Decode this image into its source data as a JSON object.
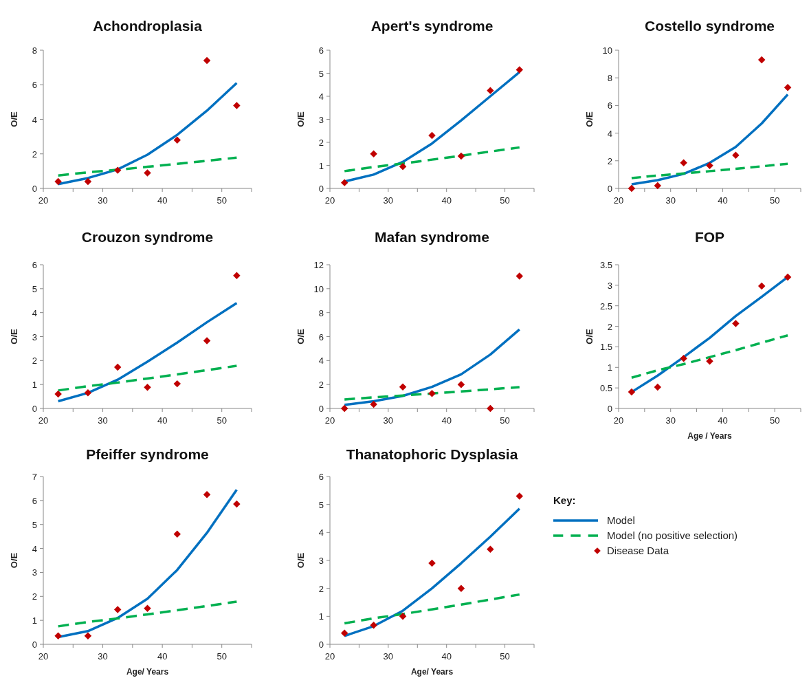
{
  "chart_data": [
    {
      "type": "line",
      "title": "Achondroplasia",
      "ylabel": "O/E",
      "xlim": [
        20,
        55
      ],
      "xticks": [
        20,
        {
          "value": 25,
          "label": null
        },
        30,
        {
          "value": 35,
          "label": null
        },
        40,
        {
          "value": 45,
          "label": null
        },
        50,
        {
          "value": 55,
          "label": null
        }
      ],
      "ylim": [
        0,
        8
      ],
      "yticks": [
        0,
        2,
        4,
        6,
        8
      ],
      "x": [
        22.5,
        27.5,
        32.5,
        37.5,
        42.5,
        47.5,
        52.5
      ],
      "series": [
        {
          "type": "line",
          "color": "#0070c0",
          "line_style": "solid",
          "values": [
            0.25,
            0.6,
            1.1,
            1.95,
            3.1,
            4.5,
            6.1
          ]
        },
        {
          "type": "line",
          "color": "#00b050",
          "line_style": "dashed",
          "values": [
            0.75,
            0.93,
            1.08,
            1.25,
            1.42,
            1.6,
            1.78
          ]
        },
        {
          "type": "scatter",
          "color": "#c00000",
          "marker": "diamond",
          "values": [
            0.4,
            0.4,
            1.05,
            0.9,
            2.8,
            7.4,
            4.8
          ]
        }
      ]
    },
    {
      "type": "line",
      "title": "Apert's syndrome",
      "ylabel": "O/E",
      "xlim": [
        20,
        55
      ],
      "xticks": [
        20,
        {
          "value": 25,
          "label": null
        },
        30,
        {
          "value": 35,
          "label": null
        },
        40,
        {
          "value": 45,
          "label": null
        },
        50,
        {
          "value": 55,
          "label": null
        }
      ],
      "ylim": [
        0,
        6
      ],
      "yticks": [
        0,
        1,
        2,
        3,
        4,
        5,
        6
      ],
      "x": [
        22.5,
        27.5,
        32.5,
        37.5,
        42.5,
        47.5,
        52.5
      ],
      "series": [
        {
          "type": "line",
          "color": "#0070c0",
          "line_style": "solid",
          "values": [
            0.3,
            0.6,
            1.15,
            1.95,
            2.95,
            4.0,
            5.05
          ]
        },
        {
          "type": "line",
          "color": "#00b050",
          "line_style": "dashed",
          "values": [
            0.75,
            0.93,
            1.08,
            1.25,
            1.42,
            1.6,
            1.78
          ]
        },
        {
          "type": "scatter",
          "color": "#c00000",
          "marker": "diamond",
          "values": [
            0.25,
            1.5,
            0.95,
            2.3,
            1.4,
            4.25,
            5.15
          ]
        }
      ]
    },
    {
      "type": "line",
      "title": "Costello syndrome",
      "ylabel": "O/E",
      "xlim": [
        20,
        55
      ],
      "xticks": [
        20,
        {
          "value": 25,
          "label": null
        },
        30,
        {
          "value": 35,
          "label": null
        },
        40,
        {
          "value": 45,
          "label": null
        },
        50,
        {
          "value": 55,
          "label": null
        }
      ],
      "ylim": [
        0,
        10
      ],
      "yticks": [
        0,
        2,
        4,
        6,
        8,
        10
      ],
      "x": [
        22.5,
        27.5,
        32.5,
        37.5,
        42.5,
        47.5,
        52.5
      ],
      "series": [
        {
          "type": "line",
          "color": "#0070c0",
          "line_style": "solid",
          "values": [
            0.3,
            0.6,
            1.05,
            1.85,
            3.0,
            4.7,
            6.8
          ]
        },
        {
          "type": "line",
          "color": "#00b050",
          "line_style": "dashed",
          "values": [
            0.75,
            0.93,
            1.08,
            1.25,
            1.42,
            1.6,
            1.78
          ]
        },
        {
          "type": "scatter",
          "color": "#c00000",
          "marker": "diamond",
          "values": [
            0,
            0.2,
            1.85,
            1.65,
            2.4,
            9.3,
            7.3
          ]
        }
      ]
    },
    {
      "type": "line",
      "title": "Crouzon syndrome",
      "ylabel": "O/E",
      "xlim": [
        20,
        55
      ],
      "xticks": [
        20,
        {
          "value": 25,
          "label": null
        },
        30,
        {
          "value": 35,
          "label": null
        },
        40,
        {
          "value": 45,
          "label": null
        },
        50,
        {
          "value": 55,
          "label": null
        }
      ],
      "ylim": [
        0,
        6
      ],
      "yticks": [
        0,
        1,
        2,
        3,
        4,
        5,
        6
      ],
      "x": [
        22.5,
        27.5,
        32.5,
        37.5,
        42.5,
        47.5,
        52.5
      ],
      "series": [
        {
          "type": "line",
          "color": "#0070c0",
          "line_style": "solid",
          "values": [
            0.3,
            0.65,
            1.2,
            1.95,
            2.75,
            3.6,
            4.4
          ]
        },
        {
          "type": "line",
          "color": "#00b050",
          "line_style": "dashed",
          "values": [
            0.75,
            0.93,
            1.08,
            1.25,
            1.42,
            1.6,
            1.78
          ]
        },
        {
          "type": "scatter",
          "color": "#c00000",
          "marker": "diamond",
          "values": [
            0.6,
            0.65,
            1.72,
            0.88,
            1.03,
            2.83,
            5.55
          ]
        }
      ]
    },
    {
      "type": "line",
      "title": "Mafan syndrome",
      "ylabel": "O/E",
      "xlim": [
        20,
        55
      ],
      "xticks": [
        20,
        {
          "value": 25,
          "label": null
        },
        30,
        {
          "value": 35,
          "label": null
        },
        40,
        {
          "value": 45,
          "label": null
        },
        50,
        {
          "value": 55,
          "label": null
        }
      ],
      "ylim": [
        0,
        12
      ],
      "yticks": [
        0,
        2,
        4,
        6,
        8,
        10,
        12
      ],
      "x": [
        22.5,
        27.5,
        32.5,
        37.5,
        42.5,
        47.5,
        52.5
      ],
      "series": [
        {
          "type": "line",
          "color": "#0070c0",
          "line_style": "solid",
          "values": [
            0.3,
            0.6,
            1.05,
            1.8,
            2.85,
            4.5,
            6.6
          ]
        },
        {
          "type": "line",
          "color": "#00b050",
          "line_style": "dashed",
          "values": [
            0.75,
            0.93,
            1.08,
            1.25,
            1.42,
            1.6,
            1.78
          ]
        },
        {
          "type": "scatter",
          "color": "#c00000",
          "marker": "diamond",
          "values": [
            0,
            0.35,
            1.8,
            1.25,
            2.0,
            0,
            11.05
          ]
        }
      ]
    },
    {
      "type": "line",
      "title": "FOP",
      "ylabel": "O/E",
      "xlabel": "Age / Years",
      "xlim": [
        20,
        55
      ],
      "xticks": [
        20,
        {
          "value": 25,
          "label": null
        },
        30,
        {
          "value": 35,
          "label": null
        },
        40,
        {
          "value": 45,
          "label": null
        },
        50,
        {
          "value": 55,
          "label": null
        }
      ],
      "ylim": [
        0,
        3.5
      ],
      "yticks": [
        0,
        0.5,
        1,
        1.5,
        2,
        2.5,
        3,
        3.5
      ],
      "x": [
        22.5,
        27.5,
        32.5,
        37.5,
        42.5,
        47.5,
        52.5
      ],
      "series": [
        {
          "type": "line",
          "color": "#0070c0",
          "line_style": "solid",
          "values": [
            0.4,
            0.8,
            1.25,
            1.72,
            2.25,
            2.72,
            3.2
          ]
        },
        {
          "type": "line",
          "color": "#00b050",
          "line_style": "dashed",
          "values": [
            0.75,
            0.93,
            1.08,
            1.25,
            1.42,
            1.6,
            1.78
          ]
        },
        {
          "type": "scatter",
          "color": "#c00000",
          "marker": "diamond",
          "values": [
            0.4,
            0.52,
            1.22,
            1.15,
            2.07,
            2.98,
            3.2
          ]
        }
      ]
    },
    {
      "type": "line",
      "title": "Pfeiffer syndrome",
      "ylabel": "O/E",
      "xlabel": "Age/ Years",
      "xlim": [
        20,
        55
      ],
      "xticks": [
        20,
        {
          "value": 25,
          "label": null
        },
        30,
        {
          "value": 35,
          "label": null
        },
        40,
        {
          "value": 45,
          "label": null
        },
        50,
        {
          "value": 55,
          "label": null
        }
      ],
      "ylim": [
        0,
        7
      ],
      "yticks": [
        0,
        1,
        2,
        3,
        4,
        5,
        6,
        7
      ],
      "x": [
        22.5,
        27.5,
        32.5,
        37.5,
        42.5,
        47.5,
        52.5
      ],
      "series": [
        {
          "type": "line",
          "color": "#0070c0",
          "line_style": "solid",
          "values": [
            0.3,
            0.55,
            1.1,
            1.9,
            3.1,
            4.65,
            6.45
          ]
        },
        {
          "type": "line",
          "color": "#00b050",
          "line_style": "dashed",
          "values": [
            0.75,
            0.93,
            1.08,
            1.25,
            1.42,
            1.6,
            1.78
          ]
        },
        {
          "type": "scatter",
          "color": "#c00000",
          "marker": "diamond",
          "values": [
            0.35,
            0.35,
            1.45,
            1.5,
            4.6,
            6.25,
            5.85
          ]
        }
      ]
    },
    {
      "type": "line",
      "title": "Thanatophoric  Dysplasia",
      "ylabel": "O/E",
      "xlabel": "Age/ Years",
      "legend": "right",
      "legend_title": "Key:",
      "xlim": [
        20,
        55
      ],
      "xticks": [
        20,
        {
          "value": 25,
          "label": null
        },
        30,
        {
          "value": 35,
          "label": null
        },
        40,
        {
          "value": 45,
          "label": null
        },
        50,
        {
          "value": 55,
          "label": null
        }
      ],
      "ylim": [
        0,
        6
      ],
      "yticks": [
        0,
        1,
        2,
        3,
        4,
        5,
        6
      ],
      "x": [
        22.5,
        27.5,
        32.5,
        37.5,
        42.5,
        47.5,
        52.5
      ],
      "series": [
        {
          "type": "line",
          "name": "Model",
          "color": "#0070c0",
          "line_style": "solid",
          "values": [
            0.3,
            0.65,
            1.2,
            2.0,
            2.9,
            3.85,
            4.85
          ]
        },
        {
          "type": "line",
          "name": "Model (no positive selection)",
          "color": "#00b050",
          "line_style": "dashed",
          "values": [
            0.75,
            0.93,
            1.08,
            1.25,
            1.42,
            1.6,
            1.78
          ]
        },
        {
          "type": "scatter",
          "name": "Disease Data",
          "color": "#c00000",
          "marker": "diamond",
          "values": [
            0.4,
            0.68,
            1.0,
            2.9,
            2.0,
            3.4,
            5.3
          ]
        }
      ]
    }
  ]
}
